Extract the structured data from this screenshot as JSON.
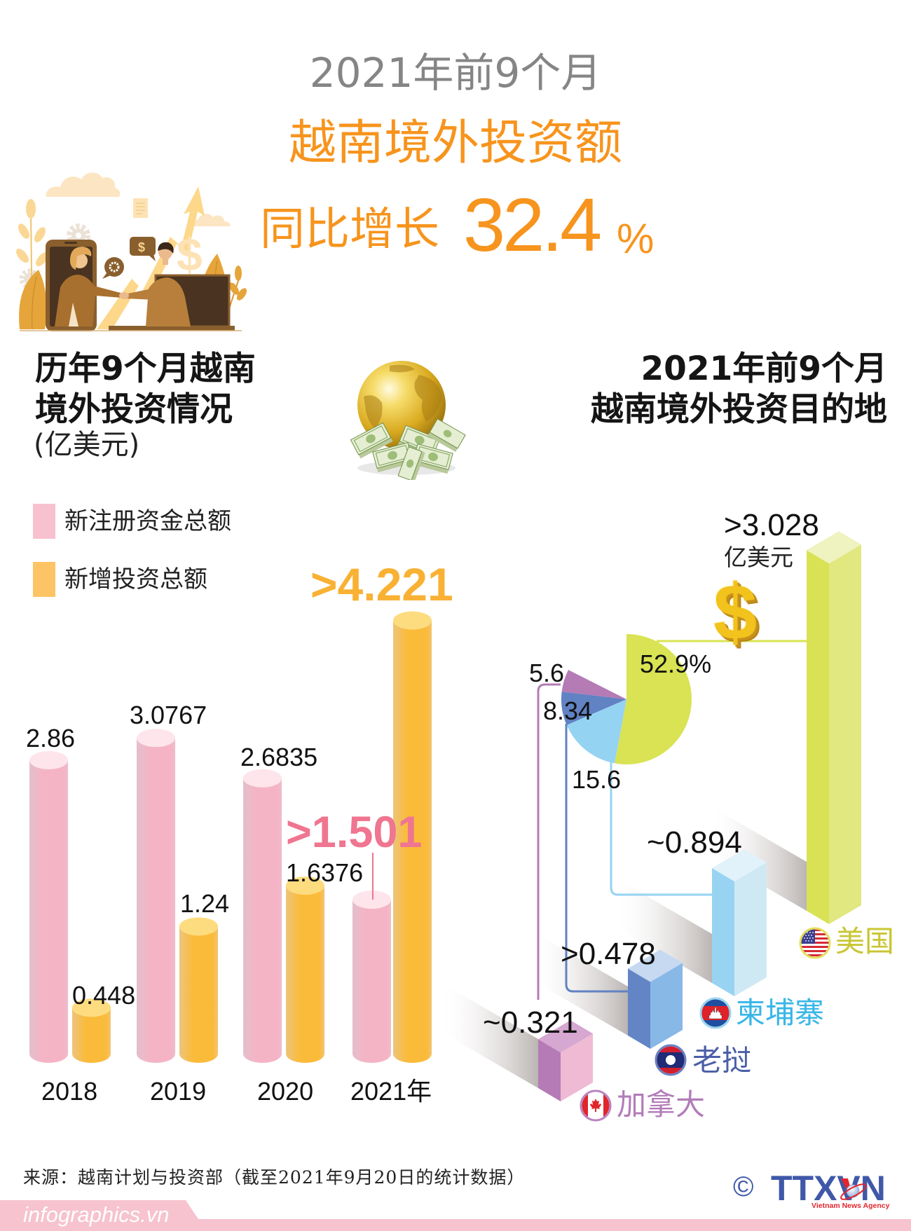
{
  "header": {
    "title_line1": "2021年前9个月",
    "title_line2": "越南境外投资额",
    "growth_label": "同比增长",
    "growth_value": "32.4",
    "growth_unit": "%"
  },
  "left_section": {
    "title_line1": "历年9个月越南",
    "title_line2": "境外投资情况",
    "unit": "(亿美元)"
  },
  "legend": [
    {
      "label": "新注册资金总额",
      "color": "#f7c1cf"
    },
    {
      "label": "新增投资总额",
      "color": "#fdc466"
    }
  ],
  "right_section": {
    "title_line1": "2021年前9个月",
    "title_line2": "越南境外投资目的地"
  },
  "icons": {
    "dollar": "$",
    "copyright": "©"
  },
  "colors": {
    "title_gray": "#858585",
    "accent_orange": "#f7941d",
    "pink_highlight": "#ef7590",
    "orange_highlight": "#f9b134",
    "footer_pink": "#f6c3cf",
    "agency_blue": "#3f58a8",
    "agency_red": "#e1262d"
  },
  "footer": {
    "source": "来源：越南计划与投资部（截至2021年9月20日的统计数据）",
    "site": "infographics.vn",
    "agency": "TTXVN",
    "agency_subtitle": "Vietnam News Agency"
  },
  "chart_data": [
    {
      "type": "bar",
      "title": "历年9个月越南境外投资情况",
      "ylabel": "亿美元",
      "xlabel": "",
      "categories": [
        "2018",
        "2019",
        "2020",
        "2021"
      ],
      "tick_labels": [
        "2018",
        "2019",
        "2020",
        "2021年"
      ],
      "series": [
        {
          "name": "新注册资金总额",
          "color": "#f5b4c6",
          "values": [
            2.86,
            3.0767,
            2.6835,
            1.501
          ],
          "labels": [
            "2.86",
            "3.0767",
            "2.6835",
            ">1.501"
          ]
        },
        {
          "name": "新增投资总额",
          "color": "#fbbb3a",
          "values": [
            0.448,
            1.24,
            1.6376,
            4.221
          ],
          "labels": [
            "0.448",
            "1.24",
            "1.6376",
            ">4.221"
          ]
        }
      ],
      "ylim": [
        0,
        4.5
      ],
      "grid": false,
      "legend_position": "top-left"
    },
    {
      "type": "pie",
      "title": "2021年前9个月越南境外投资目的地",
      "categories": [
        "美国",
        "柬埔寨",
        "老挝",
        "加拿大"
      ],
      "values": [
        52.9,
        15.6,
        8.34,
        5.6
      ],
      "labels": [
        "52.9%",
        "15.6",
        "8.34",
        "5.6"
      ],
      "colors": [
        "#d9e353",
        "#95d3f3",
        "#6182c3",
        "#b47bb5"
      ],
      "unit": "%"
    },
    {
      "type": "bar",
      "title": "2021年前9个月越南境外投资目的地",
      "categories": [
        "美国",
        "柬埔寨",
        "老挝",
        "加拿大"
      ],
      "values": [
        3.028,
        0.894,
        0.478,
        0.321
      ],
      "labels": [
        ">3.028",
        "~0.894",
        ">0.478",
        "~0.321"
      ],
      "unit": "亿美元",
      "colors": [
        "#d9e255",
        "#98d4f2",
        "#6385c5",
        "#b57bb6"
      ],
      "label_colors": [
        "#c9c634",
        "#38b6e7",
        "#4b5fa8",
        "#b27cb9"
      ]
    }
  ]
}
